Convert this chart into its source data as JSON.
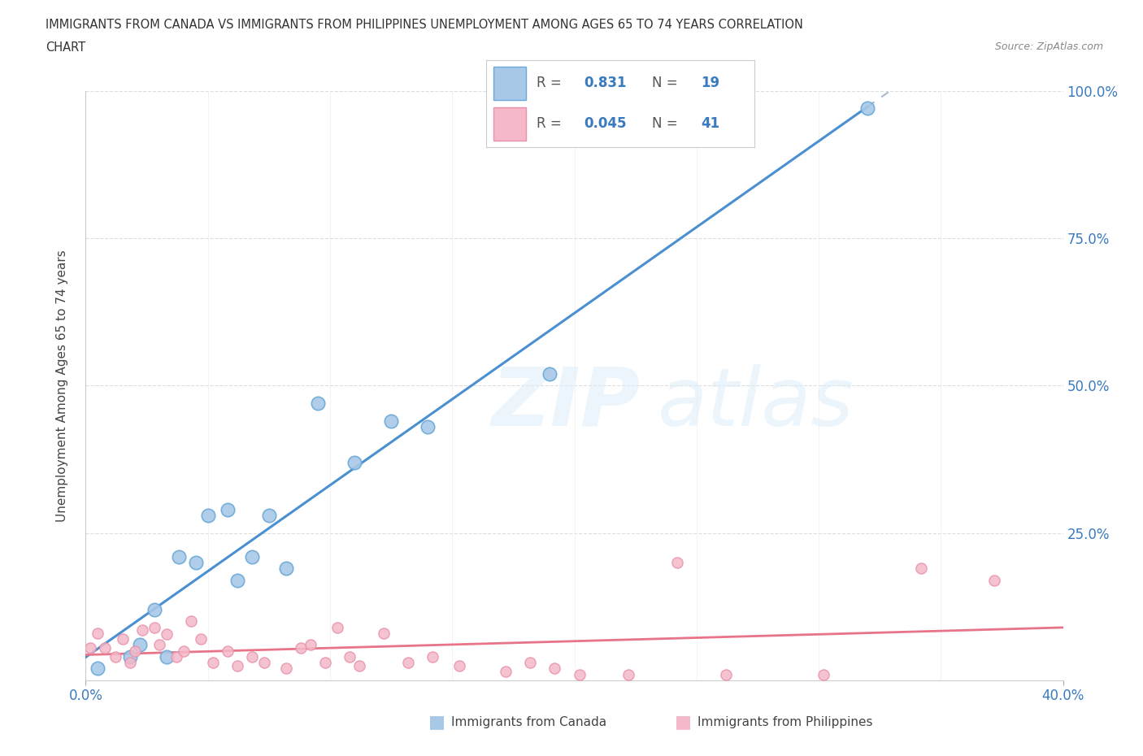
{
  "title_line1": "IMMIGRANTS FROM CANADA VS IMMIGRANTS FROM PHILIPPINES UNEMPLOYMENT AMONG AGES 65 TO 74 YEARS CORRELATION",
  "title_line2": "CHART",
  "source": "Source: ZipAtlas.com",
  "ylabel": "Unemployment Among Ages 65 to 74 years",
  "xlim": [
    0.0,
    0.4
  ],
  "ylim": [
    0.0,
    1.0
  ],
  "canada_color": "#a8c8e8",
  "canada_edge_color": "#6aaad8",
  "philippines_color": "#f4b8c8",
  "philippines_edge_color": "#e891aa",
  "canada_line_color": "#4a90d0",
  "canada_dash_color": "#aabbcc",
  "philippines_line_color": "#e8748a",
  "R_color": "#3a7abf",
  "grid_color": "#dddddd",
  "background_color": "#ffffff",
  "legend_R_canada": "0.831",
  "legend_N_canada": "19",
  "legend_R_philippines": "0.045",
  "legend_N_philippines": "41",
  "canada_scatter_x": [
    0.005,
    0.018,
    0.022,
    0.028,
    0.033,
    0.038,
    0.045,
    0.05,
    0.058,
    0.062,
    0.068,
    0.075,
    0.082,
    0.095,
    0.11,
    0.125,
    0.14,
    0.19,
    0.32
  ],
  "canada_scatter_y": [
    0.02,
    0.04,
    0.06,
    0.12,
    0.04,
    0.21,
    0.2,
    0.28,
    0.29,
    0.17,
    0.21,
    0.28,
    0.19,
    0.47,
    0.37,
    0.44,
    0.43,
    0.52,
    0.97
  ],
  "philippines_scatter_x": [
    0.002,
    0.005,
    0.008,
    0.012,
    0.015,
    0.018,
    0.02,
    0.023,
    0.028,
    0.03,
    0.033,
    0.037,
    0.04,
    0.043,
    0.047,
    0.052,
    0.058,
    0.062,
    0.068,
    0.073,
    0.082,
    0.088,
    0.092,
    0.098,
    0.103,
    0.108,
    0.112,
    0.122,
    0.132,
    0.142,
    0.153,
    0.172,
    0.182,
    0.192,
    0.202,
    0.222,
    0.242,
    0.262,
    0.302,
    0.342,
    0.372
  ],
  "philippines_scatter_y": [
    0.055,
    0.08,
    0.055,
    0.04,
    0.07,
    0.03,
    0.05,
    0.085,
    0.09,
    0.06,
    0.078,
    0.04,
    0.05,
    0.1,
    0.07,
    0.03,
    0.05,
    0.025,
    0.04,
    0.03,
    0.02,
    0.055,
    0.06,
    0.03,
    0.09,
    0.04,
    0.025,
    0.08,
    0.03,
    0.04,
    0.025,
    0.015,
    0.03,
    0.02,
    0.01,
    0.01,
    0.2,
    0.01,
    0.01,
    0.19,
    0.17
  ]
}
